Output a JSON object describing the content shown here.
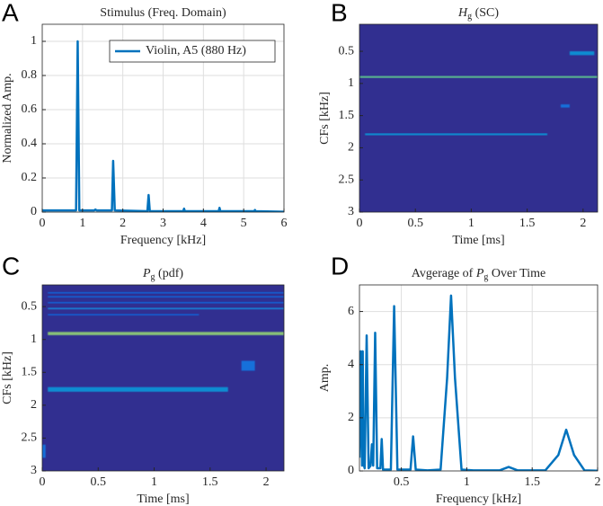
{
  "chart_data": [
    {
      "type": "line",
      "panel_label": "A",
      "title": [
        {
          "text": "Stimulus (Freq. Domain)"
        }
      ],
      "x_label": "Frequency [kHz]",
      "y_label": "Normalized Amp.",
      "xlim": [
        0,
        6
      ],
      "xticks": [
        0,
        1,
        2,
        3,
        4,
        5,
        6
      ],
      "ylim": [
        0,
        1.1
      ],
      "yticks": [
        0,
        0.2,
        0.4,
        0.6,
        0.8,
        1
      ],
      "grid": true,
      "legend": "upper right",
      "x": [
        0,
        0.84,
        0.88,
        0.92,
        1.29,
        1.32,
        1.35,
        1.73,
        1.76,
        1.8,
        2.61,
        2.64,
        2.67,
        3.5,
        3.52,
        3.54,
        4.38,
        4.4,
        4.42,
        5.26,
        5.28,
        5.3,
        6
      ],
      "series": [
        {
          "name": "Violin, A5 (880 Hz)",
          "color": "#0072bd",
          "values": [
            0.01,
            0.01,
            1,
            0.01,
            0.01,
            0.015,
            0.01,
            0.01,
            0.3,
            0.01,
            0.005,
            0.1,
            0.005,
            0.005,
            0.02,
            0.005,
            0.005,
            0.025,
            0.005,
            0.005,
            0.012,
            0.005,
            0.002
          ]
        }
      ]
    },
    {
      "type": "heatmap",
      "panel_label": "B",
      "title": [
        {
          "text": "H",
          "style": "italic"
        },
        {
          "text": "g",
          "style": "sub"
        },
        {
          "text": " (SC)"
        }
      ],
      "x_label": "Time [ms]",
      "y_label": "CFs [kHz]",
      "xlim": [
        0,
        2.13
      ],
      "xticks": [
        0,
        0.5,
        1,
        1.5,
        2
      ],
      "ylim": [
        0.08,
        3
      ],
      "yticks": [
        0.5,
        1,
        1.5,
        2,
        2.5,
        3
      ],
      "ydir": "reverse",
      "colormap": "parula",
      "zlim": [
        0,
        1
      ],
      "background_z": 0.02,
      "bands": [
        {
          "x": [
            0,
            2.13
          ],
          "y": 0.9,
          "height": 0.03,
          "z": 0.75
        },
        {
          "x": [
            0.05,
            1.68
          ],
          "y": 1.79,
          "height": 0.03,
          "z": 0.45
        },
        {
          "x": [
            1.88,
            2.1
          ],
          "y": 0.53,
          "height": 0.06,
          "z": 0.45
        },
        {
          "x": [
            1.8,
            1.88
          ],
          "y": 1.35,
          "height": 0.05,
          "z": 0.3
        }
      ]
    },
    {
      "type": "heatmap",
      "panel_label": "C",
      "title": [
        {
          "text": "P",
          "style": "italic"
        },
        {
          "text": "g",
          "style": "sub"
        },
        {
          "text": " (pdf)"
        }
      ],
      "x_label": "Time [ms]",
      "y_label": "CFs [kHz]",
      "xlim": [
        0,
        2.16
      ],
      "xticks": [
        0,
        0.5,
        1,
        1.5,
        2
      ],
      "ylim": [
        0.17,
        3
      ],
      "yticks": [
        0.5,
        1,
        1.5,
        2,
        2.5,
        3
      ],
      "ydir": "reverse",
      "colormap": "parula",
      "zlim": [
        0,
        1
      ],
      "background_z": 0.02,
      "bands": [
        {
          "x": [
            0.05,
            2.16
          ],
          "y": 0.29,
          "height": 0.02,
          "z": 0.25
        },
        {
          "x": [
            0.05,
            2.16
          ],
          "y": 0.35,
          "height": 0.02,
          "z": 0.25
        },
        {
          "x": [
            0.05,
            2.16
          ],
          "y": 0.44,
          "height": 0.02,
          "z": 0.25
        },
        {
          "x": [
            0.05,
            2.16
          ],
          "y": 0.53,
          "height": 0.025,
          "z": 0.4
        },
        {
          "x": [
            0.05,
            1.4
          ],
          "y": 0.62,
          "height": 0.015,
          "z": 0.25
        },
        {
          "x": [
            0.05,
            2.16
          ],
          "y": 0.91,
          "height": 0.05,
          "z": 0.8
        },
        {
          "x": [
            0.05,
            1.66
          ],
          "y": 1.76,
          "height": 0.07,
          "z": 0.45
        },
        {
          "x": [
            1.78,
            1.9
          ],
          "y": 1.4,
          "height": 0.15,
          "z": 0.3
        },
        {
          "x": [
            0,
            0.03
          ],
          "y": 2.7,
          "height": 0.2,
          "z": 0.3
        }
      ]
    },
    {
      "type": "line",
      "panel_label": "D",
      "title": [
        {
          "text": "Avgerage of "
        },
        {
          "text": "P",
          "style": "italic"
        },
        {
          "text": "g",
          "style": "sub"
        },
        {
          "text": " Over Time"
        }
      ],
      "x_label": "Frequency [kHz]",
      "y_label": "Amp.",
      "xlim": [
        0.18,
        2
      ],
      "xticks": [
        0.5,
        1,
        1.5,
        2
      ],
      "ylim": [
        0,
        7
      ],
      "yticks": [
        0,
        2,
        4,
        6
      ],
      "grid": true,
      "x": [
        0.18,
        0.19,
        0.2,
        0.205,
        0.21,
        0.22,
        0.235,
        0.25,
        0.265,
        0.275,
        0.285,
        0.3,
        0.315,
        0.34,
        0.35,
        0.36,
        0.42,
        0.445,
        0.47,
        0.57,
        0.59,
        0.61,
        0.7,
        0.8,
        0.85,
        0.88,
        0.91,
        0.96,
        1.05,
        1.25,
        1.32,
        1.39,
        1.6,
        1.7,
        1.76,
        1.82,
        1.9,
        2
      ],
      "series": [
        {
          "name": null,
          "color": "#0072bd",
          "values": [
            0.5,
            4.5,
            0.2,
            4.5,
            0.3,
            0.1,
            5.1,
            0.1,
            0.2,
            1.0,
            0.2,
            5.2,
            0.1,
            0.1,
            1.2,
            0.05,
            0.05,
            6.2,
            0.05,
            0.05,
            1.3,
            0.05,
            0.02,
            0.05,
            3.5,
            6.6,
            3.5,
            0.05,
            0.02,
            0.02,
            0.15,
            0.02,
            0.02,
            0.6,
            1.55,
            0.6,
            0.02,
            0.01
          ]
        }
      ]
    }
  ]
}
